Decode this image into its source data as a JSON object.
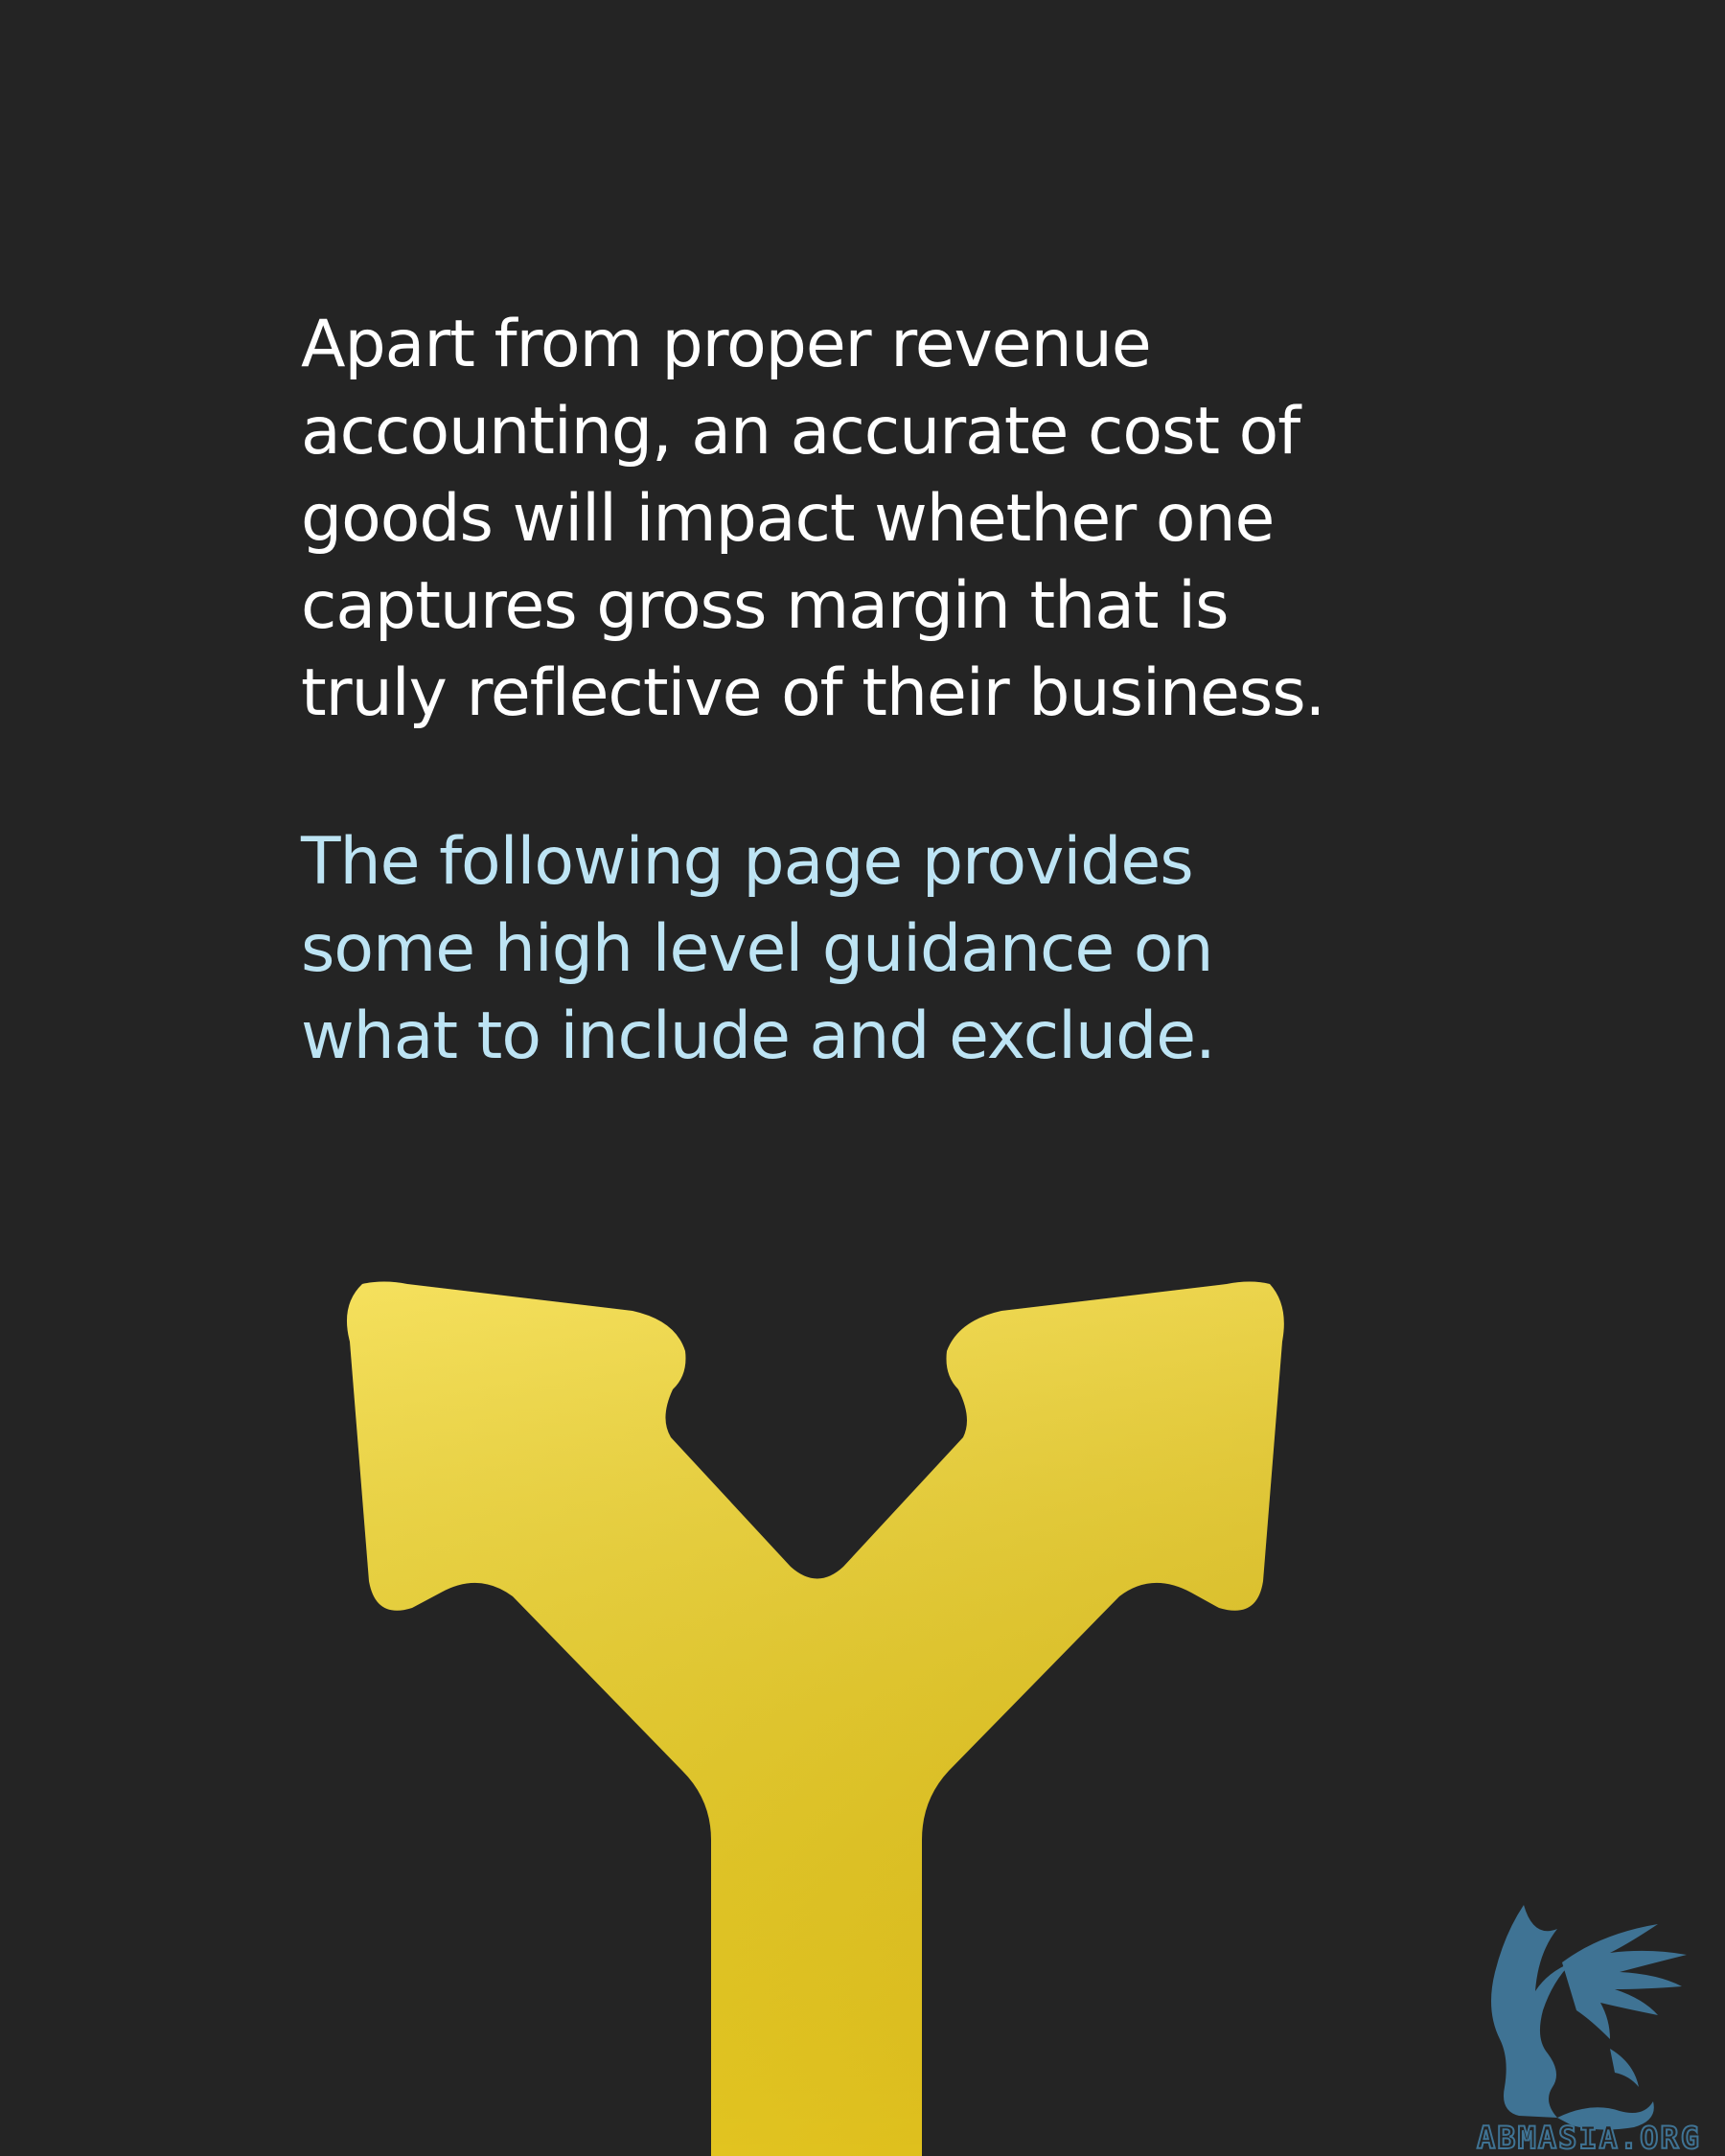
{
  "paragraphs": {
    "main_lines": [
      "Apart from proper revenue",
      "accounting, an accurate cost of",
      "goods will impact whether one",
      "captures gross margin that is",
      "truly reflective of their business."
    ],
    "accent_lines": [
      "The following page provides",
      "some high level guidance on",
      "what to include and exclude."
    ]
  },
  "illustration": {
    "icon": "split-arrow-icon",
    "color": "#e8cc25"
  },
  "watermark": {
    "icon": "griffin-logo-icon",
    "text": "ABMASIA.ORG",
    "color": "#3f7394"
  },
  "colors": {
    "background": "#242424",
    "text_primary": "#ffffff",
    "text_accent": "#bde4f4"
  }
}
